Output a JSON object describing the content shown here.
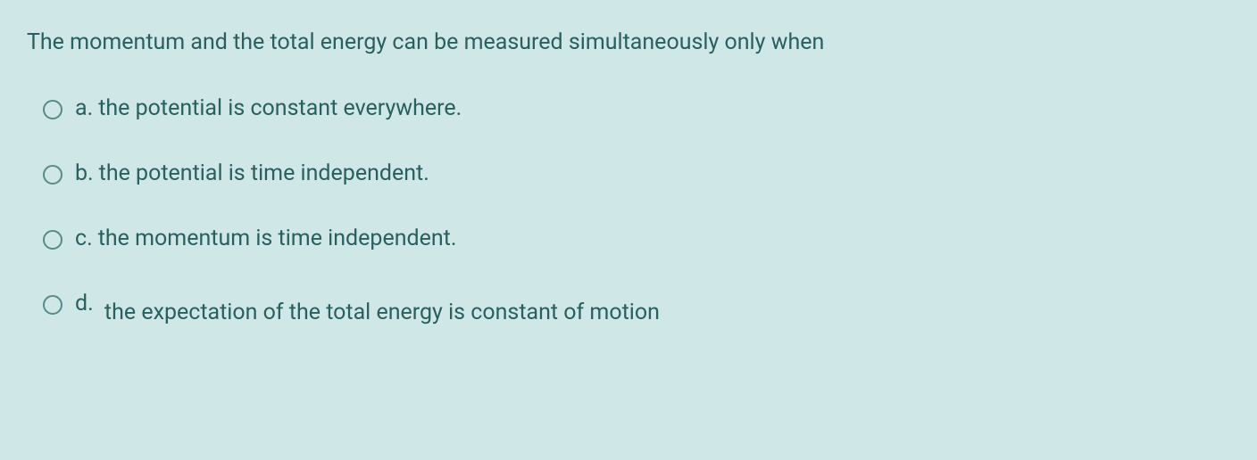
{
  "background_color": "#cfe7e7",
  "text_color": "#2a5f5f",
  "radio_border_color": "#5a8a8a",
  "question_fontsize": 25,
  "option_fontsize": 25,
  "question": "The momentum and the total energy can be measured simultaneously only when",
  "options": {
    "a": {
      "letter": "a.",
      "text": "the potential is constant everywhere.",
      "selected": false
    },
    "b": {
      "letter": "b.",
      "text": "the potential is time independent.",
      "selected": false
    },
    "c": {
      "letter": "c.",
      "text": "the momentum is time independent.",
      "selected": false
    },
    "d": {
      "letter": "d.",
      "text": "the expectation of the total energy is constant of motion",
      "selected": false
    }
  }
}
